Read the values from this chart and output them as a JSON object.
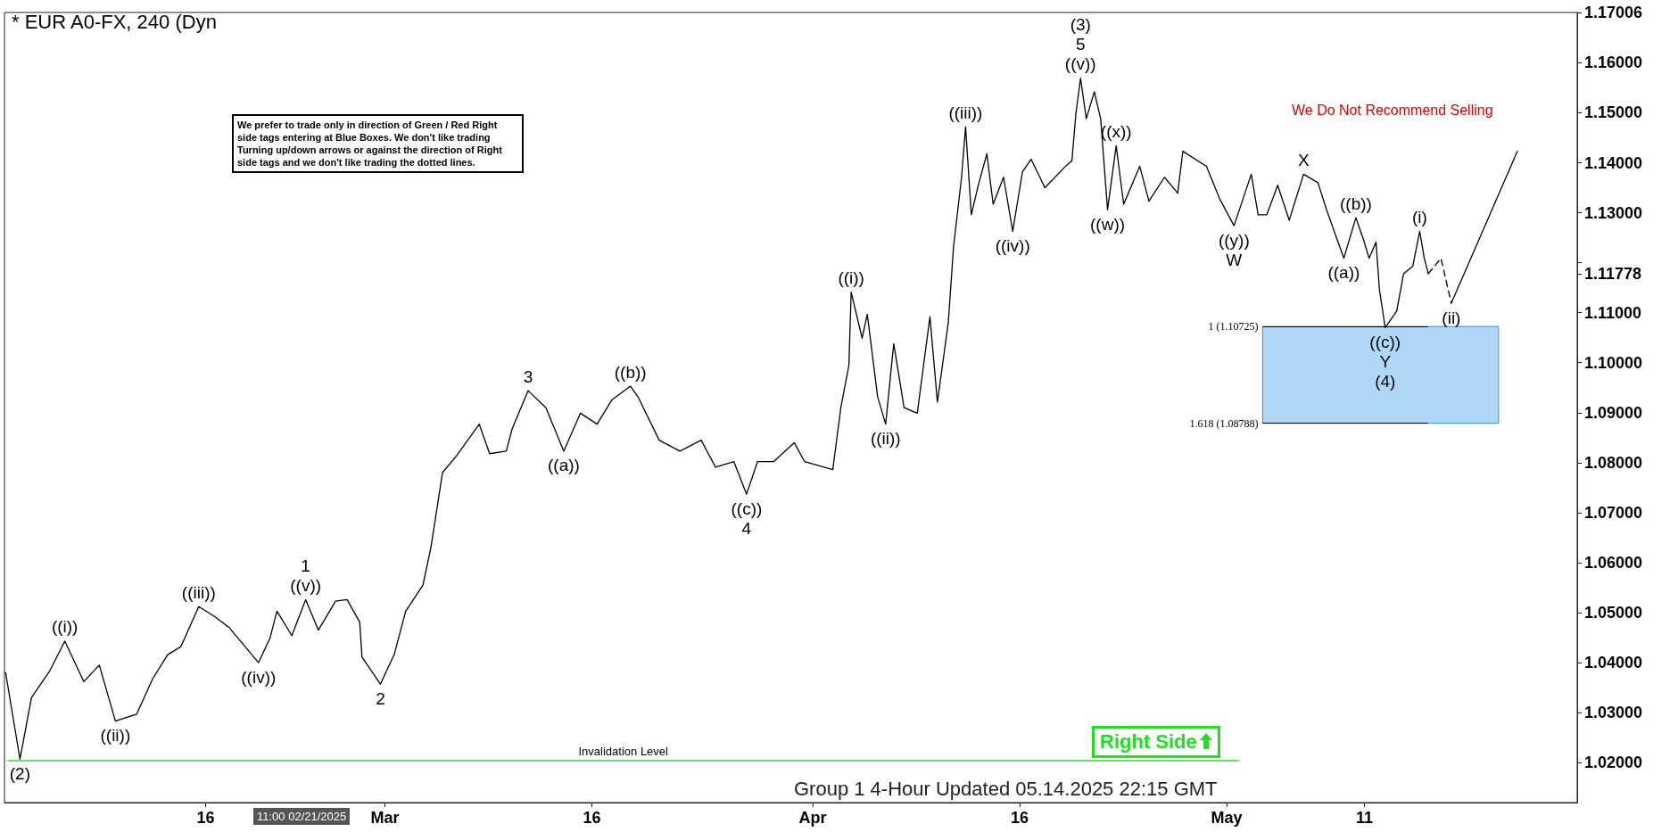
{
  "chart_data": {
    "type": "line",
    "title": "* EUR A0-FX, 240 (Dyn",
    "xlim": [
      "2025-02-01T10:00",
      "2025-05-26T10:00"
    ],
    "xticks": [
      {
        "value": "2025-02-16",
        "label": "16"
      },
      {
        "value": "2025-03-01",
        "label": "Mar"
      },
      {
        "value": "2025-03-16",
        "label": "16"
      },
      {
        "value": "2025-04-01",
        "label": "Apr"
      },
      {
        "value": "2025-04-16",
        "label": "16"
      },
      {
        "value": "2025-05-01",
        "label": "May"
      },
      {
        "value": "2025-05-11",
        "label": "11"
      }
    ],
    "ylim": [
      1.012,
      1.17006
    ],
    "yticks": [
      {
        "value": 1.02,
        "label": "1.02000"
      },
      {
        "value": 1.03,
        "label": "1.03000"
      },
      {
        "value": 1.04,
        "label": "1.04000"
      },
      {
        "value": 1.05,
        "label": "1.05000"
      },
      {
        "value": 1.06,
        "label": "1.06000"
      },
      {
        "value": 1.07,
        "label": "1.07000"
      },
      {
        "value": 1.08,
        "label": "1.08000"
      },
      {
        "value": 1.09,
        "label": "1.09000"
      },
      {
        "value": 1.1,
        "label": "1.10000"
      },
      {
        "value": 1.11,
        "label": "1.11000"
      },
      {
        "value": 1.11778,
        "label": "1.11778"
      },
      {
        "value": 1.12,
        "label": null
      },
      {
        "value": 1.13,
        "label": "1.13000"
      },
      {
        "value": 1.14,
        "label": "1.14000"
      },
      {
        "value": 1.15,
        "label": "1.15000"
      },
      {
        "value": 1.16,
        "label": "1.16000"
      },
      {
        "value": 1.17006,
        "label": "1.17006"
      }
    ],
    "grid": false,
    "marker": "none",
    "series": [
      {
        "color": "#000000",
        "line_style": "solid",
        "x": [
          "2025-02-01T12:00",
          "2025-02-02T13:00",
          "2025-02-03T09:00",
          "2025-02-04T17:00",
          "2025-02-05T19:00",
          "2025-02-07T04:00",
          "2025-02-08T07:00",
          "2025-02-09T11:00",
          "2025-02-11T00:00",
          "2025-02-12T04:00",
          "2025-02-13T06:00",
          "2025-02-14T05:00",
          "2025-02-15T12:00",
          "2025-02-16T16:00",
          "2025-02-17T17:00",
          "2025-02-19T20:00",
          "2025-02-20T16:00",
          "2025-02-21T04:00",
          "2025-02-22T06:00",
          "2025-02-23T06:00",
          "2025-02-24T04:00",
          "2025-02-25T10:00",
          "2025-02-26T06:00",
          "2025-02-27T04:00",
          "2025-02-27T08:00",
          "2025-02-28T16:00",
          "2025-03-01T16:00",
          "2025-03-02T12:00",
          "2025-03-03T18:00",
          "2025-03-04T08:00",
          "2025-03-05T04:00",
          "2025-03-06T04:00",
          "2025-03-07T20:00",
          "2025-03-08T14:00",
          "2025-03-09T19:00",
          "2025-03-10T05:00",
          "2025-03-11T09:00",
          "2025-03-12T16:00",
          "2025-03-13T23:00",
          "2025-03-15T04:00",
          "2025-03-16T09:00",
          "2025-03-17T11:00",
          "2025-03-18T19:00",
          "2025-03-19T08:00",
          "2025-03-20T21:00",
          "2025-03-22T09:00",
          "2025-03-23T22:00",
          "2025-03-24T23:00",
          "2025-03-26T07:00",
          "2025-03-27T05:00",
          "2025-03-28T00:00",
          "2025-03-29T04:00",
          "2025-03-30T16:00",
          "2025-03-31T10:00",
          "2025-04-02T11:00",
          "2025-04-03T01:00",
          "2025-04-03T15:00",
          "2025-04-03T19:00",
          "2025-04-04T14:00",
          "2025-04-04T23:00",
          "2025-04-05T17:00",
          "2025-04-06T07:00",
          "2025-04-06T21:00",
          "2025-04-07T15:00",
          "2025-04-08T14:00",
          "2025-04-09T12:00",
          "2025-04-10T01:00",
          "2025-04-10T20:00",
          "2025-04-11T05:00",
          "2025-04-11T19:00",
          "2025-04-12T02:00",
          "2025-04-12T12:00",
          "2025-04-12T23:00",
          "2025-04-13T15:00",
          "2025-04-14T02:00",
          "2025-04-14T20:00",
          "2025-04-15T12:00",
          "2025-04-16T05:00",
          "2025-04-16T20:00",
          "2025-04-17T20:00",
          "2025-04-19T08:00",
          "2025-04-19T19:00",
          "2025-04-20T02:00",
          "2025-04-20T10:00",
          "2025-04-20T20:00",
          "2025-04-21T10:00",
          "2025-04-21T21:00",
          "2025-04-22T09:00",
          "2025-04-23T00:00",
          "2025-04-23T13:00",
          "2025-04-24T17:00",
          "2025-04-25T09:00",
          "2025-04-26T12:00",
          "2025-04-27T11:00",
          "2025-04-27T20:00",
          "2025-04-29T13:00",
          "2025-04-30T12:00",
          "2025-05-01T13:00",
          "2025-05-02T19:00",
          "2025-05-03T07:00",
          "2025-05-03T22:00",
          "2025-05-04T17:00",
          "2025-05-05T13:00",
          "2025-05-06T14:00",
          "2025-05-07T15:00",
          "2025-05-08T06:00",
          "2025-05-09T12:00",
          "2025-05-10T09:00",
          "2025-05-10T22:00",
          "2025-05-11T08:00",
          "2025-05-11T20:00",
          "2025-05-12T02:00",
          "2025-05-12T12:00",
          "2025-05-13T08:00",
          "2025-05-13T20:00",
          "2025-05-14T12:00",
          "2025-05-15T00:00",
          "2025-05-15T08:00",
          "2025-05-15T15:00"
        ],
        "values": [
          1.038,
          1.0207,
          1.033,
          1.0384,
          1.0443,
          1.0362,
          1.0395,
          1.0283,
          1.0297,
          1.0368,
          1.0416,
          1.0432,
          1.0512,
          1.0492,
          1.047,
          1.04,
          1.0449,
          1.0503,
          1.0454,
          1.0526,
          1.0465,
          1.0523,
          1.0526,
          1.0481,
          1.0411,
          1.0357,
          1.0416,
          1.0503,
          1.0555,
          1.0631,
          1.078,
          1.0813,
          1.0877,
          1.0818,
          1.0823,
          1.0867,
          1.0944,
          1.091,
          1.0823,
          1.0899,
          1.0877,
          1.0926,
          1.0953,
          1.0932,
          1.0845,
          1.0823,
          1.0845,
          1.0791,
          1.0802,
          1.0737,
          1.0802,
          1.0802,
          1.084,
          1.0802,
          1.0786,
          1.091,
          1.0995,
          1.1141,
          1.1049,
          1.1097,
          1.0932,
          1.0877,
          1.1038,
          1.091,
          1.0899,
          1.1092,
          1.0921,
          1.1081,
          1.1231,
          1.1371,
          1.1472,
          1.1296,
          1.135,
          1.1418,
          1.1317,
          1.1371,
          1.1263,
          1.1382,
          1.1407,
          1.135,
          1.1393,
          1.1404,
          1.1499,
          1.1569,
          1.1488,
          1.1542,
          1.1488,
          1.1306,
          1.1434,
          1.1317,
          1.1393,
          1.1323,
          1.1371,
          1.1339,
          1.1423,
          1.1393,
          1.1328,
          1.1274,
          1.1377,
          1.1296,
          1.1296,
          1.1355,
          1.1285,
          1.1377,
          1.136,
          1.1306,
          1.1209,
          1.129,
          1.1247,
          1.1209,
          1.1241,
          1.1146,
          1.107,
          1.1103,
          1.1178,
          1.1193,
          1.1263,
          1.1209,
          1.1178
        ]
      },
      {
        "color": "#000000",
        "line_style": "dashed",
        "x": [
          "2025-05-15T15:00",
          "2025-05-16T13:00",
          "2025-05-17T07:00"
        ],
        "values": [
          1.1178,
          1.1209,
          1.1119
        ]
      },
      {
        "color": "#000000",
        "line_style": "solid",
        "x": [
          "2025-05-17T07:00",
          "2025-05-22T02:00"
        ],
        "values": [
          1.1119,
          1.1423
        ]
      }
    ],
    "ref_lines": [
      {
        "axis": "y",
        "value": 1.02042,
        "label": "Invalidation Level",
        "color": "#33dd33"
      },
      {
        "axis": "y",
        "value": 1.10725,
        "label": "1 (1.10725)",
        "color": "#000000"
      },
      {
        "axis": "y",
        "value": 1.08788,
        "label": "1.618 (1.08788)",
        "color": "#000000"
      }
    ],
    "bands": [
      {
        "axis": "y",
        "from": 1.08788,
        "to": 1.10725,
        "color": "#aed8f5"
      }
    ],
    "annotations": [
      "We prefer to trade only in direction of Green / Red Right side tags entering at Blue Boxes. We don't like trading Turning up/down arrows or against the direction of Right side tags and we don't like trading the dotted lines.",
      "We Do Not Recommend Selling",
      "Group 1 4-Hour Updated 05.14.2025 22:15 GMT",
      "11:00 02/21/2025",
      "Right Side",
      {
        "text": "(2)",
        "x": "2025-02-02T13:00",
        "y": 1.0207
      },
      {
        "text": "((i))",
        "x": "2025-02-05T19:00",
        "y": 1.0443
      },
      {
        "text": "((ii))",
        "x": "2025-02-09T11:00",
        "y": 1.0283
      },
      {
        "text": "((iii))",
        "x": "2025-02-15T12:00",
        "y": 1.0512
      },
      {
        "text": "((iv))",
        "x": "2025-02-19T20:00",
        "y": 1.04
      },
      {
        "text": "((v))",
        "x": "2025-02-23T06:00",
        "y": 1.0526
      },
      {
        "text": "1",
        "x": "2025-02-23T06:00",
        "y": 1.0526
      },
      {
        "text": "2",
        "x": "2025-02-28T16:00",
        "y": 1.0357
      },
      {
        "text": "3",
        "x": "2025-03-11T09:00",
        "y": 1.0944
      },
      {
        "text": "((a))",
        "x": "2025-03-13T23:00",
        "y": 1.0823
      },
      {
        "text": "((b))",
        "x": "2025-03-18T19:00",
        "y": 1.0953
      },
      {
        "text": "((c))",
        "x": "2025-03-27T05:00",
        "y": 1.0737
      },
      {
        "text": "4",
        "x": "2025-03-27T05:00",
        "y": 1.0737
      },
      {
        "text": "((i))",
        "x": "2025-04-03T19:00",
        "y": 1.1141
      },
      {
        "text": "((ii))",
        "x": "2025-04-06T07:00",
        "y": 1.0877
      },
      {
        "text": "((iii))",
        "x": "2025-04-12T02:00",
        "y": 1.1472
      },
      {
        "text": "((iv))",
        "x": "2025-04-15T12:00",
        "y": 1.1263
      },
      {
        "text": "((v))",
        "x": "2025-04-20T10:00",
        "y": 1.1569
      },
      {
        "text": "5",
        "x": "2025-04-20T10:00",
        "y": 1.1569
      },
      {
        "text": "(3)",
        "x": "2025-04-20T10:00",
        "y": 1.1569
      },
      {
        "text": "((w))",
        "x": "2025-04-22T09:00",
        "y": 1.1306
      },
      {
        "text": "((x))",
        "x": "2025-04-23T00:00",
        "y": 1.1434
      },
      {
        "text": "((y))",
        "x": "2025-05-01T13:00",
        "y": 1.1274
      },
      {
        "text": "W",
        "x": "2025-05-01T13:00",
        "y": 1.1274
      },
      {
        "text": "X",
        "x": "2025-05-06T14:00",
        "y": 1.1377
      },
      {
        "text": "((a))",
        "x": "2025-05-09T12:00",
        "y": 1.1209
      },
      {
        "text": "((b))",
        "x": "2025-05-10T09:00",
        "y": 1.129
      },
      {
        "text": "((c))",
        "x": "2025-05-12T12:00",
        "y": 1.107
      },
      {
        "text": "Y",
        "x": "2025-05-12T12:00",
        "y": 1.107
      },
      {
        "text": "(4)",
        "x": "2025-05-12T12:00",
        "y": 1.107
      },
      {
        "text": "(i)",
        "x": "2025-05-15T00:00",
        "y": 1.1263
      },
      {
        "text": "(ii)",
        "x": "2025-05-17T07:00",
        "y": 1.1119
      }
    ]
  }
}
